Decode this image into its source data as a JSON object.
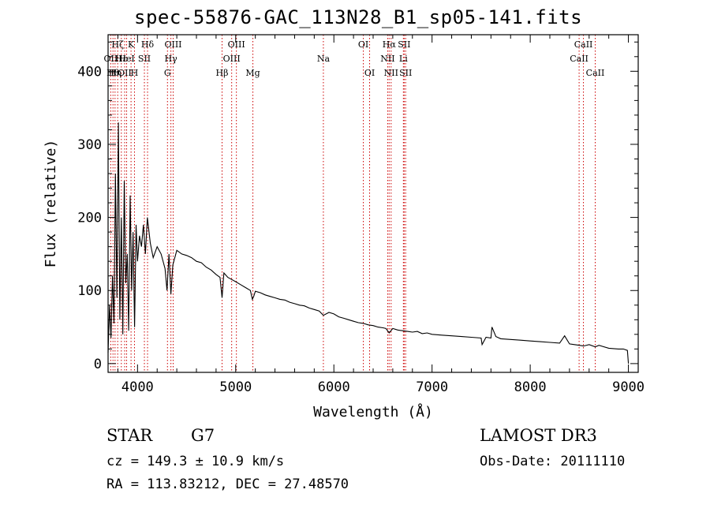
{
  "chart_data": {
    "type": "line",
    "title": "spec-55876-GAC_113N28_B1_sp05-141.fits",
    "xlabel": "Wavelength (Å)",
    "ylabel": "Flux (relative)",
    "xlim": [
      3700,
      9100
    ],
    "ylim": [
      -12,
      450
    ],
    "x_ticks": [
      4000,
      5000,
      6000,
      7000,
      8000,
      9000
    ],
    "x_tick_labels": [
      "4000",
      "5000",
      "6000",
      "7000",
      "8000",
      "9000"
    ],
    "y_ticks": [
      0,
      100,
      200,
      300,
      400
    ],
    "y_tick_labels": [
      "0",
      "100",
      "200",
      "300",
      "400"
    ],
    "series": [
      {
        "name": "flux",
        "x": [
          3700,
          3715,
          3730,
          3745,
          3760,
          3775,
          3790,
          3805,
          3820,
          3835,
          3850,
          3865,
          3880,
          3895,
          3910,
          3925,
          3940,
          3955,
          3970,
          3985,
          4000,
          4020,
          4040,
          4060,
          4080,
          4100,
          4130,
          4160,
          4200,
          4240,
          4280,
          4300,
          4320,
          4340,
          4360,
          4400,
          4450,
          4500,
          4550,
          4600,
          4650,
          4700,
          4750,
          4800,
          4840,
          4861,
          4880,
          4920,
          4960,
          5000,
          5050,
          5100,
          5150,
          5170,
          5183,
          5200,
          5250,
          5300,
          5350,
          5400,
          5450,
          5500,
          5550,
          5600,
          5650,
          5700,
          5750,
          5800,
          5850,
          5893,
          5950,
          6000,
          6050,
          6100,
          6150,
          6200,
          6250,
          6300,
          6350,
          6400,
          6450,
          6500,
          6530,
          6563,
          6600,
          6650,
          6700,
          6750,
          6800,
          6850,
          6900,
          6950,
          7000,
          7100,
          7200,
          7300,
          7400,
          7500,
          7510,
          7550,
          7600,
          7610,
          7650,
          7700,
          7800,
          7900,
          8000,
          8100,
          8200,
          8300,
          8350,
          8400,
          8450,
          8500,
          8542,
          8600,
          8662,
          8700,
          8800,
          8900,
          8950,
          8990,
          9000
        ],
        "y": [
          15,
          80,
          35,
          120,
          55,
          260,
          90,
          330,
          60,
          200,
          40,
          250,
          110,
          150,
          45,
          230,
          100,
          180,
          50,
          190,
          140,
          175,
          160,
          190,
          150,
          200,
          165,
          145,
          160,
          150,
          130,
          100,
          150,
          95,
          135,
          155,
          150,
          148,
          145,
          140,
          138,
          132,
          128,
          122,
          118,
          90,
          124,
          118,
          115,
          112,
          108,
          104,
          100,
          88,
          92,
          99,
          97,
          94,
          92,
          90,
          88,
          87,
          84,
          82,
          80,
          79,
          76,
          74,
          72,
          66,
          70,
          68,
          64,
          62,
          60,
          58,
          56,
          55,
          53,
          52,
          50,
          49,
          48,
          42,
          48,
          46,
          45,
          44,
          43,
          44,
          41,
          42,
          40,
          39,
          38,
          37,
          36,
          35,
          26,
          36,
          35,
          50,
          37,
          34,
          33,
          32,
          31,
          30,
          29,
          28,
          38,
          27,
          26,
          25,
          24,
          26,
          23,
          25,
          21,
          20,
          20,
          18,
          0
        ]
      }
    ],
    "line_markers": [
      {
        "label": "OII",
        "wavelength": 3727,
        "row": 1
      },
      {
        "label": "Hθ",
        "wavelength": 3750,
        "row": 2
      },
      {
        "label": "Hη",
        "wavelength": 3771,
        "row": 2
      },
      {
        "label": "Hζ",
        "wavelength": 3798,
        "row": 0
      },
      {
        "label": "Hε",
        "wavelength": 3835,
        "row": 1
      },
      {
        "label": "OII",
        "wavelength": 3869,
        "row": 2
      },
      {
        "label": "HeI",
        "wavelength": 3889,
        "row": 1
      },
      {
        "label": "K",
        "wavelength": 3934,
        "row": 0
      },
      {
        "label": "H",
        "wavelength": 3969,
        "row": 2
      },
      {
        "label": "SII",
        "wavelength": 4070,
        "row": 1
      },
      {
        "label": "Hδ",
        "wavelength": 4102,
        "row": 0
      },
      {
        "label": "G",
        "wavelength": 4305,
        "row": 2
      },
      {
        "label": "Hγ",
        "wavelength": 4340,
        "row": 1
      },
      {
        "label": "OIII",
        "wavelength": 4363,
        "row": 0
      },
      {
        "label": "Hβ",
        "wavelength": 4861,
        "row": 2
      },
      {
        "label": "OIII",
        "wavelength": 4959,
        "row": 1
      },
      {
        "label": "OIII",
        "wavelength": 5007,
        "row": 0
      },
      {
        "label": "Mg",
        "wavelength": 5175,
        "row": 2
      },
      {
        "label": "Na",
        "wavelength": 5893,
        "row": 1
      },
      {
        "label": "OI",
        "wavelength": 6300,
        "row": 0
      },
      {
        "label": "OI",
        "wavelength": 6364,
        "row": 2
      },
      {
        "label": "NII",
        "wavelength": 6548,
        "row": 1
      },
      {
        "label": "Hα",
        "wavelength": 6563,
        "row": 0
      },
      {
        "label": "NII",
        "wavelength": 6583,
        "row": 2
      },
      {
        "label": "Li",
        "wavelength": 6708,
        "row": 1
      },
      {
        "label": "SII",
        "wavelength": 6716,
        "row": 0
      },
      {
        "label": "SII",
        "wavelength": 6731,
        "row": 2
      },
      {
        "label": "CaII",
        "wavelength": 8498,
        "row": 1
      },
      {
        "label": "CaII",
        "wavelength": 8542,
        "row": 0
      },
      {
        "label": "CaII",
        "wavelength": 8662,
        "row": 2
      }
    ]
  },
  "info": {
    "object_class": "STAR",
    "subclass": "G7",
    "survey": "LAMOST DR3",
    "redshift_text": "cz = 149.3 ± 10.9 km/s",
    "obs_date_text": "Obs-Date: 20111110",
    "coords_text": "RA = 113.83212, DEC =  27.48570"
  },
  "colors": {
    "axis": "#000000",
    "spectrum": "#000000",
    "marker_line": "#cc0000"
  }
}
